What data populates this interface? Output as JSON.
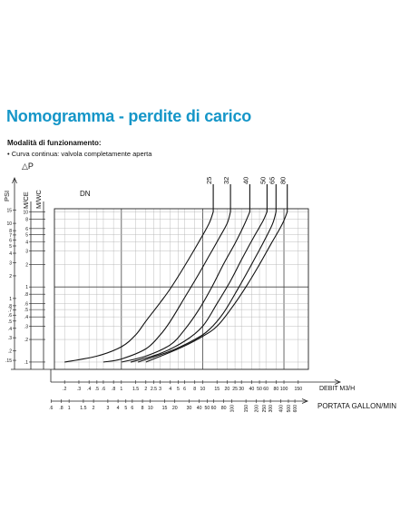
{
  "header": {
    "title": "Nomogramma - perdite di carico",
    "subtitle": "Modalità di funzionamento:",
    "note": "• Curva continua: valvola completamente aperta"
  },
  "chart_data": {
    "type": "line",
    "title": "",
    "delta_p_label": "△P",
    "y_axes": [
      {
        "label": "PSI",
        "ticks": [
          "15",
          "10",
          "8",
          "7",
          "6",
          "5",
          "4",
          "3",
          "2",
          "1",
          ".8",
          ".7",
          ".6",
          ".5",
          ".4",
          ".3",
          ".2",
          ".15"
        ]
      },
      {
        "label": "M/CE",
        "ticks": [
          "10",
          "8",
          "6",
          "5",
          "4",
          "3",
          "2",
          "1",
          ".8",
          ".6",
          ".5",
          ".4",
          ".3",
          ".2",
          ".1"
        ]
      },
      {
        "label": "M/WC",
        "ticks": []
      }
    ],
    "x_axes": [
      {
        "label": "DEBIT  M3/H",
        "ticks": [
          ".2",
          ".3",
          ".4",
          ".5",
          ".6",
          ".8",
          "1",
          "1.5",
          "2",
          "2.5",
          "3",
          "4",
          "5",
          "6",
          "8",
          "10",
          "15",
          "20",
          "25",
          "30",
          "40",
          "50",
          "60",
          "80",
          "100",
          "150"
        ]
      },
      {
        "label": "PORTATA GALLON/MIN",
        "ticks": [
          ".6",
          ".8",
          "1",
          "1.5",
          "2",
          "3",
          "4",
          "5",
          "6",
          "8",
          "10",
          "15",
          "20",
          "30",
          "40",
          "50",
          "60",
          "80",
          "100",
          "150",
          "200",
          "250",
          "300",
          "400",
          "500",
          "600"
        ]
      }
    ],
    "xlim_m3h": [
      0.15,
      200
    ],
    "ylim_mce": [
      0.08,
      11
    ],
    "grid": true,
    "legend_title": "DN",
    "series": [
      {
        "name": "25",
        "points": [
          [
            0.2,
            0.1
          ],
          [
            0.5,
            0.12
          ],
          [
            1,
            0.16
          ],
          [
            1.5,
            0.23
          ],
          [
            2,
            0.35
          ],
          [
            3,
            0.62
          ],
          [
            4,
            0.95
          ],
          [
            6,
            1.9
          ],
          [
            9,
            4.0
          ],
          [
            12,
            7.0
          ],
          [
            13.5,
            10
          ]
        ]
      },
      {
        "name": "32",
        "points": [
          [
            0.6,
            0.1
          ],
          [
            1,
            0.11
          ],
          [
            2,
            0.15
          ],
          [
            3,
            0.23
          ],
          [
            4,
            0.35
          ],
          [
            6,
            0.72
          ],
          [
            9,
            1.5
          ],
          [
            12,
            2.6
          ],
          [
            16,
            4.5
          ],
          [
            20,
            7.0
          ],
          [
            22,
            10
          ]
        ]
      },
      {
        "name": "40",
        "points": [
          [
            1,
            0.1
          ],
          [
            2,
            0.12
          ],
          [
            4,
            0.17
          ],
          [
            6,
            0.27
          ],
          [
            9,
            0.5
          ],
          [
            13,
            1.0
          ],
          [
            18,
            2.0
          ],
          [
            25,
            3.8
          ],
          [
            32,
            6.5
          ],
          [
            38,
            10
          ]
        ]
      },
      {
        "name": "50",
        "points": [
          [
            1.3,
            0.1
          ],
          [
            3,
            0.13
          ],
          [
            6,
            0.19
          ],
          [
            10,
            0.3
          ],
          [
            15,
            0.6
          ],
          [
            22,
            1.2
          ],
          [
            30,
            2.3
          ],
          [
            42,
            4.5
          ],
          [
            55,
            7.5
          ],
          [
            62,
            10
          ]
        ]
      },
      {
        "name": "65",
        "points": [
          [
            1.6,
            0.1
          ],
          [
            4,
            0.14
          ],
          [
            8,
            0.2
          ],
          [
            12,
            0.27
          ],
          [
            18,
            0.45
          ],
          [
            28,
            1.0
          ],
          [
            40,
            2.0
          ],
          [
            55,
            3.8
          ],
          [
            72,
            6.8
          ],
          [
            80,
            10
          ]
        ]
      },
      {
        "name": "80",
        "points": [
          [
            2,
            0.1
          ],
          [
            5,
            0.15
          ],
          [
            10,
            0.22
          ],
          [
            15,
            0.3
          ],
          [
            22,
            0.5
          ],
          [
            35,
            1.05
          ],
          [
            50,
            2.0
          ],
          [
            70,
            3.8
          ],
          [
            95,
            6.8
          ],
          [
            110,
            10
          ]
        ]
      }
    ]
  }
}
